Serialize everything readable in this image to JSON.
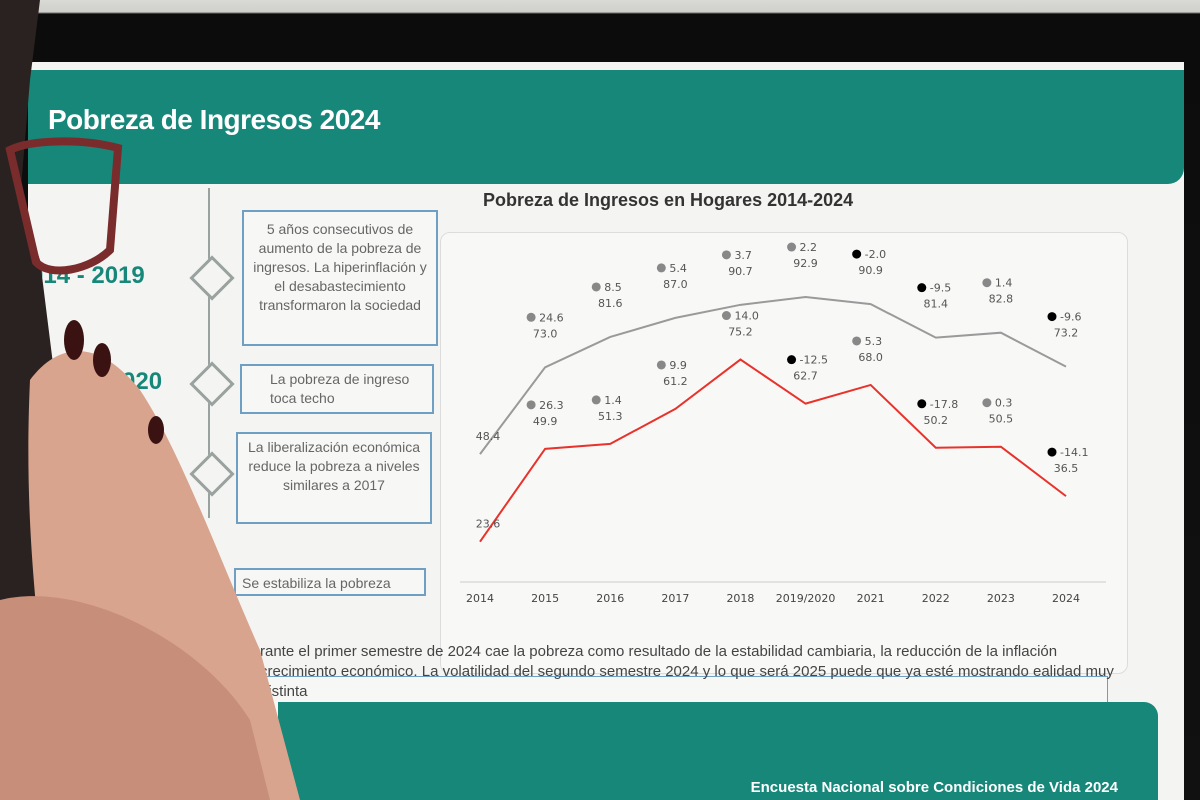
{
  "slide": {
    "title": "Pobreza de Ingresos 2024",
    "footer": "Encuesta Nacional sobre Condiciones de Vida 2024"
  },
  "timeline": {
    "periods": [
      "014 - 2019",
      "020"
    ],
    "boxes": [
      "5 años consecutivos de aumento de la pobreza de ingresos. La hiperinflación y el desabastecimiento transformaron la sociedad",
      "La pobreza de ingreso toca techo",
      "La liberalización económica reduce la pobreza a niveles similares a 2017",
      "Se estabiliza la pobreza"
    ]
  },
  "bottom_text": "rante el primer semestre de 2024 cae la pobreza como resultado de la estabilidad cambiaria, la reducción de la inflación crecimiento económico. La volatilidad del segundo semestre 2024 y lo que será 2025 puede que ya esté mostrando ealidad muy distinta",
  "chart_data": {
    "type": "line",
    "title": "Pobreza de Ingresos en Hogares 2014-2024",
    "categories": [
      "2014",
      "2015",
      "2016",
      "2017",
      "2018",
      "2019/2020",
      "2021",
      "2022",
      "2023",
      "2024"
    ],
    "series": [
      {
        "color": "#9a9a9a",
        "values": [
          48.4,
          73.0,
          81.6,
          87.0,
          90.7,
          92.9,
          90.9,
          81.4,
          82.8,
          73.2
        ],
        "changes": [
          "",
          "24.6",
          "8.5",
          "5.4",
          "3.7",
          "2.2",
          "-2.0",
          "-9.5",
          "1.4",
          "-9.6"
        ],
        "change_dot": [
          "",
          "#888",
          "#888",
          "#888",
          "#888",
          "#888",
          "#000",
          "#000",
          "#888",
          "#000"
        ]
      },
      {
        "color": "#e8322b",
        "values": [
          23.6,
          49.9,
          51.3,
          61.2,
          75.2,
          62.7,
          68.0,
          50.2,
          50.5,
          36.5
        ],
        "changes": [
          "",
          "26.3",
          "1.4",
          "9.9",
          "14.0",
          "-12.5",
          "5.3",
          "-17.8",
          "0.3",
          "-14.1"
        ],
        "change_dot": [
          "",
          "#888",
          "#888",
          "#888",
          "#888",
          "#000",
          "#888",
          "#000",
          "#888",
          "#000"
        ]
      }
    ],
    "ylim": [
      15,
      100
    ],
    "grid": false
  }
}
